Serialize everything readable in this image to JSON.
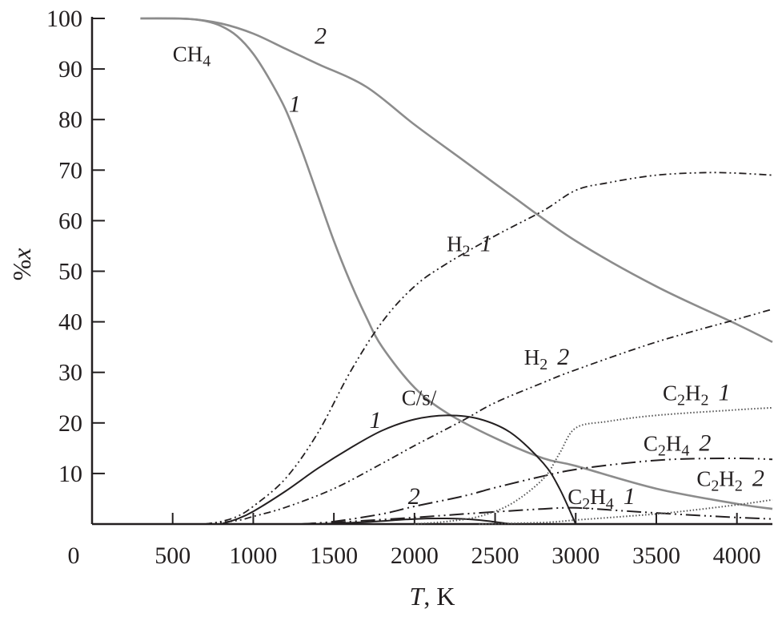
{
  "chart_data": {
    "type": "line",
    "title": "",
    "xlabel": "T, K",
    "xlabel_parts": {
      "var": "T",
      "unit": ", K"
    },
    "ylabel": "%x",
    "ylabel_parts": {
      "pre": "%",
      "var": "x"
    },
    "xlim": [
      0,
      4220
    ],
    "ylim": [
      0,
      100
    ],
    "x_ticks": [
      500,
      1000,
      1500,
      2000,
      2500,
      3000,
      3500,
      4000
    ],
    "y_ticks": [
      10,
      20,
      30,
      40,
      50,
      60,
      70,
      80,
      90,
      100
    ],
    "origin_label": "0",
    "grid": false,
    "colors": {
      "gray": "#8c8c8c",
      "black": "#231f20"
    },
    "series": [
      {
        "id": "ch4-1",
        "style": "solid-gray",
        "x": [
          300,
          500,
          600,
          700,
          800,
          900,
          1000,
          1100,
          1200,
          1300,
          1400,
          1500,
          1600,
          1700,
          1800,
          2000,
          2200,
          2500,
          2800,
          3000,
          3500,
          4000,
          4220
        ],
        "y": [
          100,
          100,
          99.9,
          99.5,
          98.5,
          96.5,
          93,
          88,
          82,
          74,
          65,
          56,
          48,
          41,
          35,
          27,
          22,
          17,
          13,
          11.5,
          7,
          4,
          3
        ]
      },
      {
        "id": "ch4-2",
        "style": "solid-gray",
        "x": [
          300,
          600,
          800,
          1000,
          1200,
          1400,
          1700,
          2000,
          2300,
          2600,
          3000,
          3500,
          4000,
          4220
        ],
        "y": [
          100,
          99.9,
          99,
          97,
          94,
          91,
          86.5,
          79,
          72,
          65,
          56,
          47,
          39.5,
          36
        ]
      },
      {
        "id": "h2-1",
        "style": "dash-dot-dot",
        "x": [
          700,
          800,
          900,
          1000,
          1200,
          1400,
          1600,
          1800,
          2000,
          2200,
          2500,
          2800,
          3000,
          3200,
          3500,
          3800,
          4000,
          4220
        ],
        "y": [
          0,
          0.5,
          1.5,
          3.5,
          9,
          18,
          30,
          40,
          47,
          51.5,
          57,
          62,
          66,
          67.5,
          69,
          69.5,
          69.4,
          69
        ]
      },
      {
        "id": "h2-2",
        "style": "dash-dot-dot",
        "x": [
          700,
          900,
          1000,
          1200,
          1500,
          1800,
          2000,
          2300,
          2500,
          2800,
          3000,
          3500,
          4000,
          4220
        ],
        "y": [
          0,
          0.7,
          1.5,
          3.3,
          7,
          12,
          15.5,
          20.5,
          24,
          28,
          30.5,
          36,
          40.5,
          42.5
        ]
      },
      {
        "id": "cs-1",
        "style": "solid-black",
        "x": [
          800,
          900,
          1000,
          1200,
          1400,
          1600,
          1800,
          2000,
          2200,
          2400,
          2600,
          2800,
          2900,
          3000
        ],
        "y": [
          0,
          1,
          2.5,
          6.5,
          11,
          15,
          18.5,
          20.7,
          21.5,
          20.8,
          18,
          12,
          7,
          0
        ]
      },
      {
        "id": "cs-2",
        "style": "solid-black",
        "x": [
          1400,
          1700,
          2000,
          2200,
          2400,
          2600
        ],
        "y": [
          0,
          0.4,
          1,
          1.1,
          0.8,
          0
        ]
      },
      {
        "id": "c2h4-2",
        "style": "long-dash-dot-dot",
        "x": [
          1300,
          1500,
          1800,
          2000,
          2300,
          2500,
          2800,
          3000,
          3300,
          3600,
          4000,
          4220
        ],
        "y": [
          0,
          0.5,
          2,
          3.5,
          5.5,
          7.2,
          9.5,
          10.8,
          12,
          12.8,
          13,
          12.8
        ]
      },
      {
        "id": "c2h4-1",
        "style": "long-dash-dot-dot",
        "x": [
          1300,
          1600,
          2000,
          2400,
          2800,
          3000,
          3300,
          3600,
          4000,
          4220
        ],
        "y": [
          0,
          0.5,
          1.3,
          2.2,
          3,
          3.2,
          2.6,
          2,
          1.3,
          1
        ]
      },
      {
        "id": "c2h2-1",
        "style": "dotted",
        "x": [
          2000,
          2200,
          2400,
          2600,
          2800,
          2900,
          3000,
          3200,
          3500,
          4000,
          4220
        ],
        "y": [
          0,
          0.5,
          1.5,
          4,
          9,
          14,
          19,
          20.3,
          21.5,
          22.6,
          23
        ]
      },
      {
        "id": "c2h2-2",
        "style": "dotted",
        "x": [
          2400,
          2800,
          3000,
          3300,
          3600,
          4000,
          4220
        ],
        "y": [
          0,
          0.3,
          0.8,
          1.5,
          2.3,
          3.8,
          4.8
        ]
      }
    ],
    "annotations": [
      {
        "id": "ch4",
        "text": "CH",
        "sub": "4",
        "num": "",
        "x": 500,
        "y": 91.5
      },
      {
        "id": "ch4-num-2",
        "text": "",
        "sub": "",
        "num": "2",
        "x": 1380,
        "y": 95
      },
      {
        "id": "ch4-num-1",
        "text": "",
        "sub": "",
        "num": "1",
        "x": 1220,
        "y": 81.5
      },
      {
        "id": "h2-1",
        "text": "H",
        "sub": "2",
        "num": "1",
        "x": 2200,
        "y": 54
      },
      {
        "id": "h2-2",
        "text": "H",
        "sub": "2",
        "num": "2",
        "x": 2680,
        "y": 31.5
      },
      {
        "id": "cs",
        "text": "C/s/",
        "sub": "",
        "num": "",
        "x": 1920,
        "y": 23.5
      },
      {
        "id": "cs-num-1",
        "text": "",
        "sub": "",
        "num": "1",
        "x": 1720,
        "y": 19
      },
      {
        "id": "cs-num-2",
        "text": "",
        "sub": "",
        "num": "2",
        "x": 1960,
        "y": 4
      },
      {
        "id": "c2h2-1",
        "text": "C",
        "sub": "2",
        "text2": "H",
        "sub2": "2",
        "num": "1",
        "x": 3540,
        "y": 24.5
      },
      {
        "id": "c2h4-2",
        "text": "C",
        "sub": "2",
        "text2": "H",
        "sub2": "4",
        "num": "2",
        "x": 3420,
        "y": 14.5
      },
      {
        "id": "c2h4-1",
        "text": "C",
        "sub": "2",
        "text2": "H",
        "sub2": "4",
        "num": "1",
        "x": 2950,
        "y": 4
      },
      {
        "id": "c2h2-2",
        "text": "C",
        "sub": "2",
        "text2": "H",
        "sub2": "2",
        "num": "2",
        "x": 3750,
        "y": 7.5
      }
    ]
  }
}
